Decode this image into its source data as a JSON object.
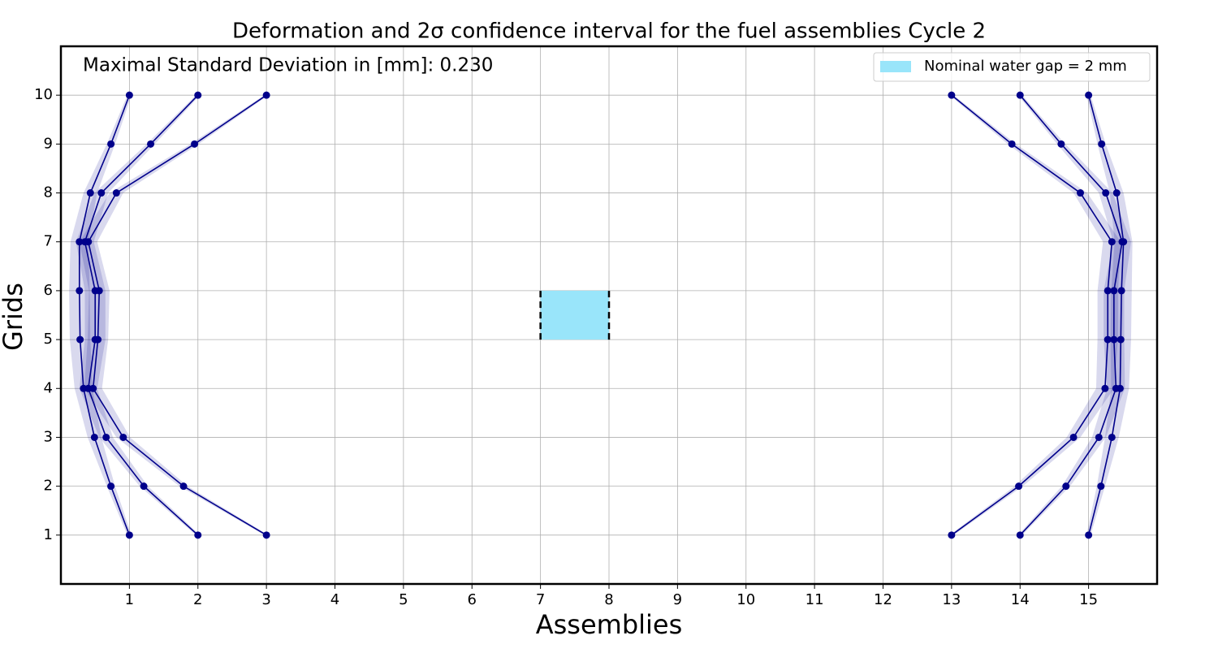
{
  "chart_data": {
    "type": "line",
    "title": "Deformation and 2σ confidence interval for the fuel assemblies Cycle 2",
    "annotation": "Maximal Standard Deviation in [mm]: 0.230",
    "x_label": "Assemblies",
    "y_label": "Grids",
    "xlim": [
      0,
      16
    ],
    "ylim": [
      0,
      11
    ],
    "xticks": [
      1,
      2,
      3,
      4,
      5,
      6,
      7,
      8,
      9,
      10,
      11,
      12,
      13,
      14,
      15
    ],
    "yticks": [
      1,
      2,
      3,
      4,
      5,
      6,
      7,
      8,
      9,
      10
    ],
    "grid": true,
    "legend_position": "upper right",
    "line_color": "#00008b",
    "band_opacity": 0.15,
    "series": [
      {
        "x": [
          1.0,
          0.73,
          0.49,
          0.33,
          0.28,
          0.27,
          0.27,
          0.43,
          0.73,
          1.0
        ],
        "values": [
          1,
          2,
          3,
          4,
          5,
          6,
          7,
          8,
          9,
          10
        ],
        "ci_halfwidth": [
          0.03,
          0.06,
          0.1,
          0.13,
          0.15,
          0.15,
          0.13,
          0.1,
          0.06,
          0.03
        ]
      },
      {
        "x": [
          2.0,
          1.21,
          0.66,
          0.4,
          0.5,
          0.5,
          0.35,
          0.59,
          1.31,
          2.0
        ],
        "values": [
          1,
          2,
          3,
          4,
          5,
          6,
          7,
          8,
          9,
          10
        ],
        "ci_halfwidth": [
          0.03,
          0.06,
          0.1,
          0.13,
          0.15,
          0.15,
          0.13,
          0.1,
          0.06,
          0.03
        ]
      },
      {
        "x": [
          3.0,
          1.79,
          0.91,
          0.47,
          0.54,
          0.56,
          0.4,
          0.81,
          1.95,
          3.0
        ],
        "values": [
          1,
          2,
          3,
          4,
          5,
          6,
          7,
          8,
          9,
          10
        ],
        "ci_halfwidth": [
          0.03,
          0.06,
          0.1,
          0.13,
          0.15,
          0.15,
          0.13,
          0.1,
          0.06,
          0.03
        ]
      },
      {
        "x": [
          13.0,
          13.98,
          14.78,
          15.24,
          15.28,
          15.28,
          15.34,
          14.88,
          13.88,
          13.0
        ],
        "values": [
          1,
          2,
          3,
          4,
          5,
          6,
          7,
          8,
          9,
          10
        ],
        "ci_halfwidth": [
          0.03,
          0.06,
          0.1,
          0.13,
          0.15,
          0.15,
          0.13,
          0.1,
          0.06,
          0.03
        ]
      },
      {
        "x": [
          14.0,
          14.67,
          15.15,
          15.4,
          15.37,
          15.37,
          15.49,
          15.25,
          14.6,
          14.0
        ],
        "values": [
          1,
          2,
          3,
          4,
          5,
          6,
          7,
          8,
          9,
          10
        ],
        "ci_halfwidth": [
          0.03,
          0.06,
          0.1,
          0.13,
          0.15,
          0.15,
          0.13,
          0.1,
          0.06,
          0.03
        ]
      },
      {
        "x": [
          15.0,
          15.18,
          15.34,
          15.46,
          15.47,
          15.48,
          15.51,
          15.41,
          15.19,
          15.0
        ],
        "values": [
          1,
          2,
          3,
          4,
          5,
          6,
          7,
          8,
          9,
          10
        ],
        "ci_halfwidth": [
          0.03,
          0.06,
          0.1,
          0.13,
          0.15,
          0.15,
          0.13,
          0.1,
          0.06,
          0.03
        ]
      }
    ],
    "water_gap": {
      "label": "Nominal water gap = 2 mm",
      "color": "#99e5fa",
      "x": [
        7,
        8
      ],
      "y": [
        5,
        6
      ]
    }
  }
}
